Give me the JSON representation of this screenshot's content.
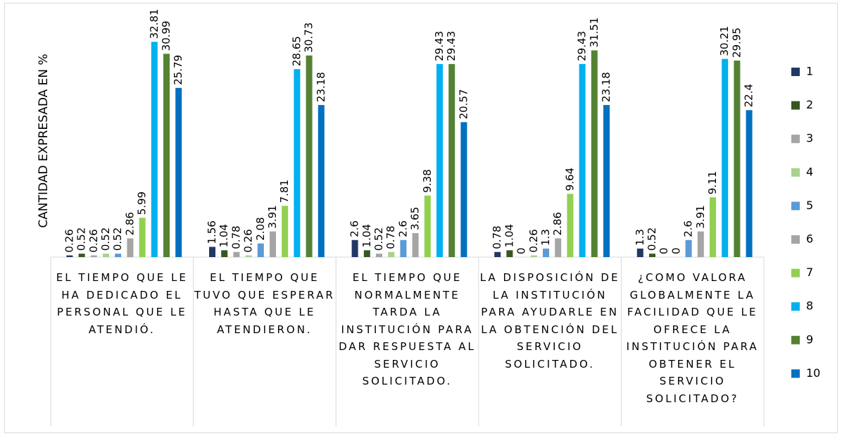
{
  "chart_data": {
    "type": "bar",
    "ylabel": "CANTIDAD EXPRESADA EN %",
    "categories": [
      "EL TIEMPO QUE LE HA DEDICADO EL PERSONAL QUE LE ATENDIÓ.",
      "EL TIEMPO QUE TUVO QUE ESPERAR HASTA QUE LE ATENDIERON.",
      "EL TIEMPO QUE NORMALMENTE TARDA LA INSTITUCIÓN PARA DAR RESPUESTA AL SERVICIO SOLICITADO.",
      "LA DISPOSICIÓN DE LA INSTITUCIÓN PARA AYUDARLE EN LA OBTENCIÓN DEL SERVICIO SOLICITADO.",
      "¿COMO VALORA GLOBALMENTE LA FACILIDAD QUE LE OFRECE LA INSTITUCIÓN PARA OBTENER EL SERVICIO SOLICITADO?"
    ],
    "series": [
      {
        "name": "1",
        "color": "#203864",
        "values": [
          0.26,
          1.56,
          2.6,
          0.78,
          1.3
        ]
      },
      {
        "name": "2",
        "color": "#375623",
        "values": [
          0.52,
          1.04,
          1.04,
          1.04,
          0.52
        ]
      },
      {
        "name": "3",
        "color": "#a5a5a5",
        "values": [
          0.26,
          0.78,
          0.52,
          0,
          0
        ]
      },
      {
        "name": "4",
        "color": "#a9d18e",
        "values": [
          0.52,
          0.26,
          0.78,
          0.26,
          0
        ]
      },
      {
        "name": "5",
        "color": "#5b9bd5",
        "values": [
          0.52,
          2.08,
          2.6,
          1.3,
          2.6
        ]
      },
      {
        "name": "6",
        "color": "#a5a5a5",
        "values": [
          2.86,
          3.91,
          3.65,
          2.86,
          3.91
        ]
      },
      {
        "name": "7",
        "color": "#92d050",
        "values": [
          5.99,
          7.81,
          9.38,
          9.64,
          9.11
        ]
      },
      {
        "name": "8",
        "color": "#00b0f0",
        "values": [
          32.81,
          28.65,
          29.43,
          29.43,
          30.21
        ]
      },
      {
        "name": "9",
        "color": "#548235",
        "values": [
          30.99,
          30.73,
          29.43,
          31.51,
          29.95
        ]
      },
      {
        "name": "10",
        "color": "#0070c0",
        "values": [
          25.79,
          23.18,
          20.57,
          23.18,
          22.4
        ]
      }
    ],
    "ylim": [
      0,
      35
    ],
    "legend": "right"
  }
}
